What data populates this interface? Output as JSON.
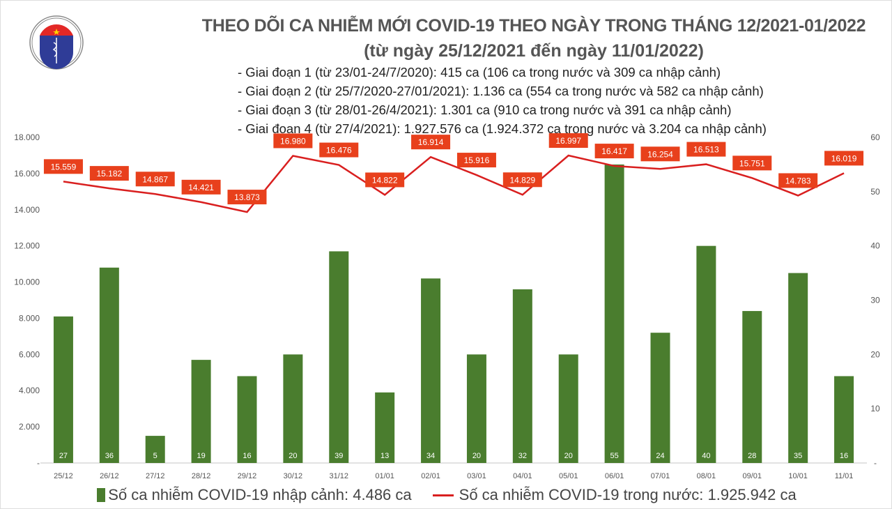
{
  "logo": {
    "top_text": "BỘ Y TẾ",
    "bottom_text": "MINISTRY OF HEALTH"
  },
  "header": {
    "title": "THEO DÕI CA NHIỄM MỚI COVID-19 THEO NGÀY TRONG THÁNG 12/2021-01/2022",
    "subtitle": "(từ ngày 25/12/2021 đến ngày 11/01/2022)",
    "stages": [
      "- Giai đoạn 1 (từ 23/01-24/7/2020): 415 ca (106 ca trong nước và 309 ca nhập cảnh)",
      "- Giai đoạn 2 (từ 25/7/2020-27/01/2021): 1.136 ca (554 ca trong nước và 582 ca nhập cảnh)",
      "- Giai đoạn 3 (từ 28/01-26/4/2021): 1.301 ca (910 ca trong nước và 391 ca nhập cảnh)",
      "- Giai đoạn 4 (từ 27/4/2021): 1.927.576 ca (1.924.372 ca trong nước và 3.204 ca nhập cảnh)"
    ]
  },
  "chart_data": {
    "type": "bar+line",
    "categories": [
      "25/12",
      "26/12",
      "27/12",
      "28/12",
      "29/12",
      "30/12",
      "31/12",
      "01/01",
      "02/01",
      "03/01",
      "04/01",
      "05/01",
      "06/01",
      "07/01",
      "08/01",
      "09/01",
      "10/01",
      "11/01"
    ],
    "series": [
      {
        "name": "Số ca nhiễm COVID-19 nhập cảnh: 4.486 ca",
        "type": "bar",
        "axis": "right",
        "color": "#4a7d2e",
        "values": [
          27,
          36,
          5,
          19,
          16,
          20,
          39,
          13,
          34,
          20,
          32,
          20,
          55,
          24,
          40,
          28,
          35,
          16
        ]
      },
      {
        "name": "Số ca nhiễm COVID-19 trong nước: 1.925.942 ca",
        "type": "line",
        "axis": "left",
        "color": "#d91f1f",
        "values": [
          15559,
          15182,
          14867,
          14421,
          13873,
          16980,
          16476,
          14822,
          16914,
          15916,
          14829,
          16997,
          16417,
          16254,
          16513,
          15751,
          14783,
          16019
        ],
        "labels": [
          "15.559",
          "15.182",
          "14.867",
          "14.421",
          "13.873",
          "16.980",
          "16.476",
          "14.822",
          "16.914",
          "15.916",
          "14.829",
          "16.997",
          "16.417",
          "16.254",
          "16.513",
          "15.751",
          "14.783",
          "16.019"
        ]
      }
    ],
    "left_axis": {
      "ylim": [
        0,
        18000
      ],
      "ticks": [
        "-",
        "2.000",
        "4.000",
        "6.000",
        "8.000",
        "10.000",
        "12.000",
        "14.000",
        "16.000",
        "18.000"
      ]
    },
    "right_axis": {
      "ylim": [
        0,
        60
      ],
      "ticks": [
        "-",
        "10",
        "20",
        "30",
        "40",
        "50",
        "60"
      ]
    },
    "grid": false,
    "legend": "bottom"
  }
}
